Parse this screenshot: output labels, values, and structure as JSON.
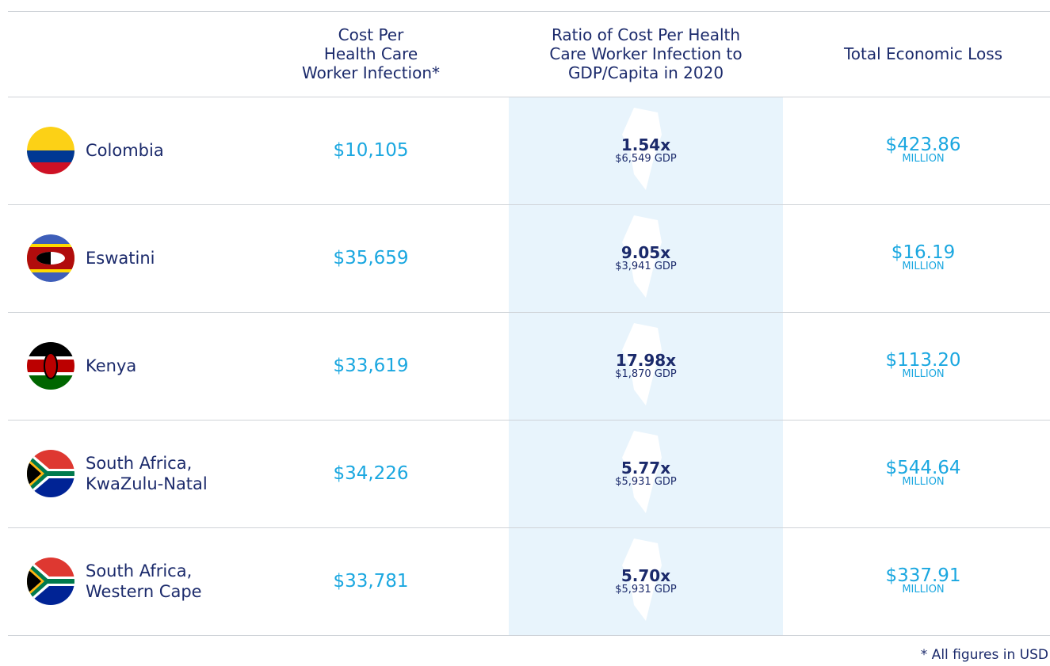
{
  "header": {
    "cost": [
      "Cost Per",
      "Health Care",
      "Worker Infection*"
    ],
    "ratio": [
      "Ratio of Cost Per Health",
      "Care Worker Infection to",
      "GDP/Capita in 2020"
    ],
    "total": [
      "Total Economic Loss"
    ]
  },
  "rows": [
    {
      "country": [
        "Colombia"
      ],
      "cost": "$10,105",
      "ratio": "1.54x",
      "gdp": "$6,549 GDP",
      "total": "$423.86",
      "unit": "MILLION"
    },
    {
      "country": [
        "Eswatini"
      ],
      "cost": "$35,659",
      "ratio": "9.05x",
      "gdp": "$3,941 GDP",
      "total": "$16.19",
      "unit": "MILLION"
    },
    {
      "country": [
        "Kenya"
      ],
      "cost": "$33,619",
      "ratio": "17.98x",
      "gdp": "$1,870 GDP",
      "total": "$113.20",
      "unit": "MILLION"
    },
    {
      "country": [
        "South Africa,",
        "KwaZulu-Natal"
      ],
      "cost": "$34,226",
      "ratio": "5.77x",
      "gdp": "$5,931 GDP",
      "total": "$544.64",
      "unit": "MILLION"
    },
    {
      "country": [
        "South Africa,",
        "Western Cape"
      ],
      "cost": "$33,781",
      "ratio": "5.70x",
      "gdp": "$5,931 GDP",
      "total": "$337.91",
      "unit": "MILLION"
    }
  ],
  "footnote": "* All figures in USD"
}
